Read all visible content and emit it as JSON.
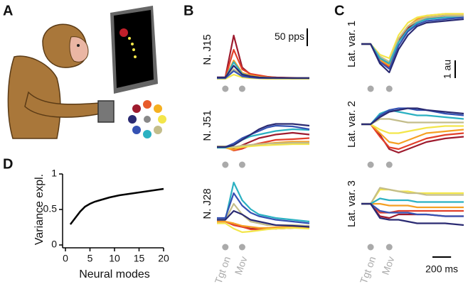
{
  "panel_labels": [
    "A",
    "B",
    "C",
    "D"
  ],
  "chart_data": [
    {
      "type": "line",
      "panel": "D",
      "x": [
        1,
        2,
        3,
        4,
        5,
        6,
        7,
        8,
        9,
        10,
        11,
        12,
        13,
        14,
        15,
        16,
        17,
        18,
        19,
        20
      ],
      "values": [
        0.29,
        0.38,
        0.47,
        0.54,
        0.58,
        0.61,
        0.63,
        0.65,
        0.67,
        0.685,
        0.7,
        0.71,
        0.72,
        0.73,
        0.74,
        0.75,
        0.76,
        0.77,
        0.78,
        0.79
      ],
      "color": "#000000",
      "xlabel": "Neural modes",
      "ylabel": "Variance expl.",
      "xlim": [
        0,
        20
      ],
      "ylim": [
        0,
        1
      ],
      "xticks": [
        0,
        5,
        10,
        15,
        20
      ],
      "yticks": [
        0,
        0.5,
        1
      ]
    },
    {
      "type": "traces",
      "panel": "B",
      "colors": [
        "#9e1b2e",
        "#e23f2a",
        "#f5a024",
        "#f3e64a",
        "#c3bd8a",
        "#2bb1c2",
        "#3552b3",
        "#2a2a72"
      ],
      "x": [
        -100,
        0,
        100,
        200,
        300,
        400,
        500,
        600,
        800,
        1000
      ],
      "xlim": [
        -100,
        1000
      ],
      "ylim": [
        0,
        180
      ],
      "events": [
        {
          "value": 0,
          "label": "Tgt on"
        },
        {
          "value": 200,
          "label": "Mov"
        }
      ],
      "scale_bar": {
        "value": 50,
        "label": "50 pps"
      },
      "rows": [
        {
          "label": "N. J15",
          "series": [
            [
              12,
              12,
              130,
              40,
              20,
              15,
              12,
              12,
              10,
              10
            ],
            [
              12,
              12,
              90,
              35,
              22,
              18,
              14,
              12,
              11,
              10
            ],
            [
              10,
              10,
              60,
              25,
              18,
              14,
              12,
              11,
              10,
              10
            ],
            [
              8,
              8,
              20,
              12,
              10,
              9,
              8,
              8,
              8,
              8
            ],
            [
              10,
              10,
              35,
              18,
              14,
              12,
              10,
              10,
              10,
              10
            ],
            [
              10,
              10,
              55,
              22,
              15,
              12,
              11,
              10,
              10,
              10
            ],
            [
              10,
              10,
              30,
              15,
              12,
              10,
              10,
              10,
              10,
              10
            ],
            [
              12,
              12,
              45,
              20,
              15,
              12,
              11,
              11,
              10,
              10
            ]
          ]
        },
        {
          "label": "N. J51",
          "series": [
            [
              30,
              30,
              25,
              35,
              45,
              55,
              60,
              65,
              70,
              65
            ],
            [
              30,
              30,
              20,
              25,
              35,
              40,
              45,
              50,
              52,
              55
            ],
            [
              28,
              28,
              22,
              30,
              35,
              38,
              40,
              42,
              45,
              45
            ],
            [
              30,
              30,
              28,
              30,
              32,
              34,
              35,
              36,
              38,
              38
            ],
            [
              32,
              32,
              30,
              34,
              36,
              38,
              40,
              40,
              42,
              42
            ],
            [
              28,
              28,
              35,
              50,
              60,
              65,
              70,
              75,
              80,
              78
            ],
            [
              30,
              30,
              40,
              55,
              65,
              75,
              85,
              90,
              88,
              80
            ],
            [
              30,
              30,
              35,
              50,
              65,
              80,
              90,
              95,
              95,
              90
            ]
          ]
        },
        {
          "label": "N. J28",
          "series": [
            [
              40,
              40,
              30,
              25,
              20,
              20,
              22,
              20,
              22,
              25
            ],
            [
              40,
              40,
              30,
              25,
              18,
              18,
              20,
              20,
              22,
              24
            ],
            [
              40,
              40,
              35,
              28,
              25,
              22,
              22,
              24,
              25,
              25
            ],
            [
              35,
              35,
              20,
              10,
              12,
              15,
              18,
              20,
              22,
              20
            ],
            [
              45,
              45,
              90,
              60,
              40,
              35,
              30,
              30,
              30,
              28
            ],
            [
              45,
              45,
              150,
              100,
              75,
              60,
              55,
              50,
              45,
              40
            ],
            [
              50,
              50,
              120,
              85,
              65,
              55,
              50,
              45,
              40,
              35
            ],
            [
              45,
              45,
              70,
              60,
              45,
              40,
              35,
              30,
              28,
              25
            ]
          ]
        }
      ]
    },
    {
      "type": "traces",
      "panel": "C",
      "colors": [
        "#9e1b2e",
        "#e23f2a",
        "#f5a024",
        "#f3e64a",
        "#c3bd8a",
        "#2bb1c2",
        "#3552b3",
        "#2a2a72"
      ],
      "x": [
        -100,
        0,
        100,
        200,
        300,
        400,
        500,
        600,
        800,
        1000
      ],
      "xlim": [
        -100,
        1000
      ],
      "ylim": [
        -2,
        2
      ],
      "events": [
        {
          "value": 0,
          "label": "Tgt on"
        },
        {
          "value": 200,
          "label": "Mov"
        }
      ],
      "scale_bar": {
        "value": 1,
        "label": "1 au"
      },
      "time_bar": {
        "value": 200,
        "label": "200 ms"
      },
      "rows": [
        {
          "label": "Lat. var. 1",
          "series": [
            [
              0,
              0,
              -0.9,
              -1.2,
              0.2,
              0.9,
              1.3,
              1.5,
              1.6,
              1.6
            ],
            [
              0,
              0,
              -1.0,
              -1.3,
              0.1,
              0.8,
              1.2,
              1.4,
              1.6,
              1.6
            ],
            [
              0,
              0,
              -0.9,
              -1.2,
              0.3,
              1.0,
              1.4,
              1.6,
              1.7,
              1.7
            ],
            [
              0,
              0,
              -0.6,
              -0.8,
              0.5,
              1.2,
              1.5,
              1.6,
              1.7,
              1.7
            ],
            [
              0,
              0,
              -0.7,
              -1.0,
              0.3,
              1.0,
              1.3,
              1.5,
              1.6,
              1.6
            ],
            [
              0,
              0,
              -0.8,
              -1.1,
              0.1,
              0.8,
              1.2,
              1.4,
              1.5,
              1.5
            ],
            [
              0,
              0,
              -1.0,
              -1.4,
              -0.1,
              0.7,
              1.1,
              1.3,
              1.4,
              1.5
            ],
            [
              0,
              0,
              -1.1,
              -1.6,
              -0.3,
              0.5,
              1.0,
              1.2,
              1.3,
              1.4
            ]
          ]
        },
        {
          "label": "Lat. var. 2",
          "series": [
            [
              0,
              0,
              -0.6,
              -1.4,
              -1.6,
              -1.4,
              -1.2,
              -1.0,
              -0.8,
              -0.7
            ],
            [
              0,
              0,
              -0.7,
              -1.3,
              -1.4,
              -1.2,
              -1.0,
              -0.8,
              -0.6,
              -0.5
            ],
            [
              0,
              0,
              -0.5,
              -1.0,
              -1.1,
              -0.9,
              -0.7,
              -0.5,
              -0.4,
              -0.3
            ],
            [
              0,
              0,
              -0.3,
              -0.5,
              -0.5,
              -0.4,
              -0.3,
              -0.2,
              -0.1,
              -0.1
            ],
            [
              0,
              0,
              0.3,
              0.3,
              0.2,
              0.1,
              0.1,
              0.1,
              0.1,
              0.1
            ],
            [
              0,
              0,
              0.6,
              0.8,
              0.7,
              0.6,
              0.5,
              0.5,
              0.4,
              0.3
            ],
            [
              0,
              0,
              0.5,
              0.8,
              0.9,
              0.9,
              0.8,
              0.8,
              0.6,
              0.5
            ],
            [
              0,
              0,
              0.4,
              0.7,
              0.8,
              0.9,
              0.9,
              0.8,
              0.7,
              0.6
            ]
          ]
        },
        {
          "label": "Lat. var. 3",
          "series": [
            [
              0,
              0,
              -0.7,
              -0.8,
              -0.6,
              -0.6,
              -0.6,
              -0.6,
              -0.7,
              -0.7
            ],
            [
              0,
              0,
              -0.5,
              -0.5,
              -0.4,
              -0.4,
              -0.4,
              -0.4,
              -0.4,
              -0.4
            ],
            [
              0,
              0,
              0.0,
              -0.1,
              -0.1,
              -0.1,
              -0.2,
              -0.2,
              -0.2,
              -0.2
            ],
            [
              0,
              0,
              0.8,
              0.8,
              0.7,
              0.7,
              0.6,
              0.6,
              0.6,
              0.6
            ],
            [
              0,
              0,
              0.9,
              0.8,
              0.7,
              0.6,
              0.6,
              0.5,
              0.5,
              0.5
            ],
            [
              0,
              0,
              0.3,
              0.2,
              0.2,
              0.2,
              0.1,
              0.1,
              0.1,
              0.1
            ],
            [
              0,
              0,
              -0.4,
              -0.5,
              -0.5,
              -0.5,
              -0.6,
              -0.6,
              -0.7,
              -0.7
            ],
            [
              0,
              0,
              -0.8,
              -0.9,
              -0.9,
              -1.0,
              -1.1,
              -1.1,
              -1.1,
              -1.2
            ]
          ]
        }
      ]
    }
  ]
}
